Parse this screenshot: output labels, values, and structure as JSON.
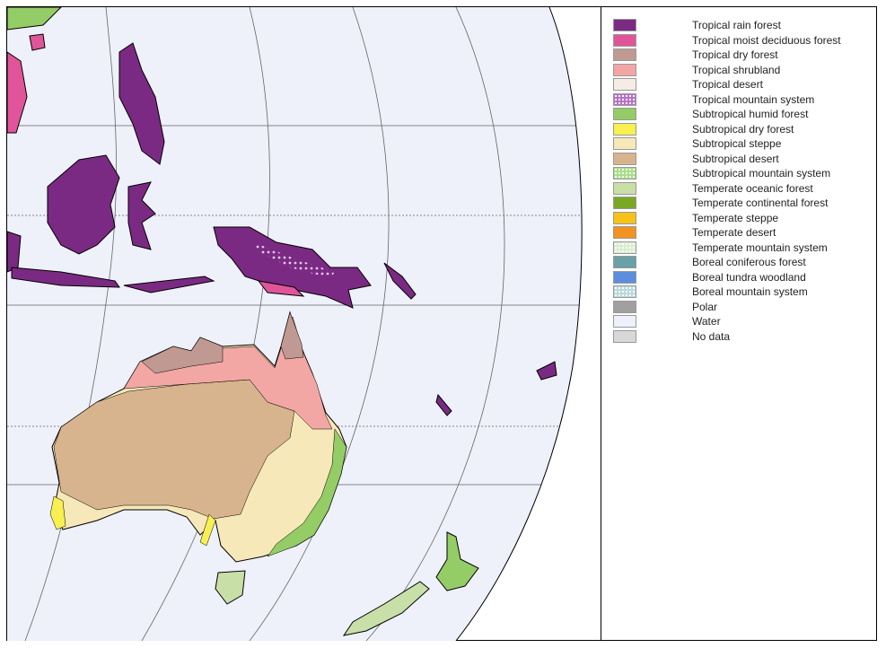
{
  "legend": {
    "items": [
      {
        "label": "Tropical rain forest",
        "color": "#7b2a83"
      },
      {
        "label": "Tropical moist deciduous forest",
        "color": "#e0559a"
      },
      {
        "label": "Tropical dry forest",
        "color": "#c09a92"
      },
      {
        "label": "Tropical shrubland",
        "color": "#f2a7a4"
      },
      {
        "label": "Tropical desert",
        "color": "#f7ece4"
      },
      {
        "label": "Tropical mountain system",
        "color": "#b86fc7",
        "pattern": "dotted"
      },
      {
        "label": "Subtropical humid forest",
        "color": "#94cc66"
      },
      {
        "label": "Subtropical dry forest",
        "color": "#f7f050"
      },
      {
        "label": "Subtropical steppe",
        "color": "#f6e8b8"
      },
      {
        "label": "Subtropical desert",
        "color": "#d7b48e"
      },
      {
        "label": "Subtropical mountain system",
        "color": "#a8de86",
        "pattern": "dotted"
      },
      {
        "label": "Temperate oceanic forest",
        "color": "#c8e0a8"
      },
      {
        "label": "Temperate continental forest",
        "color": "#7aa824"
      },
      {
        "label": "Temperate steppe",
        "color": "#f6c21a"
      },
      {
        "label": "Temperate desert",
        "color": "#f29220"
      },
      {
        "label": "Temperate mountain system",
        "color": "#d8ecd0",
        "pattern": "dotted"
      },
      {
        "label": "Boreal coniferous forest",
        "color": "#6aa0a8"
      },
      {
        "label": "Boreal  tundra woodland",
        "color": "#5c8ee0"
      },
      {
        "label": "Boreal mountain system",
        "color": "#b8d8dc",
        "pattern": "dotted"
      },
      {
        "label": "Polar",
        "color": "#a0a0a0"
      },
      {
        "label": "Water",
        "color": "#eef0fa"
      },
      {
        "label": "No data",
        "color": "#d8d8d8"
      }
    ]
  },
  "map": {
    "ocean_color": "#eef0fa"
  }
}
